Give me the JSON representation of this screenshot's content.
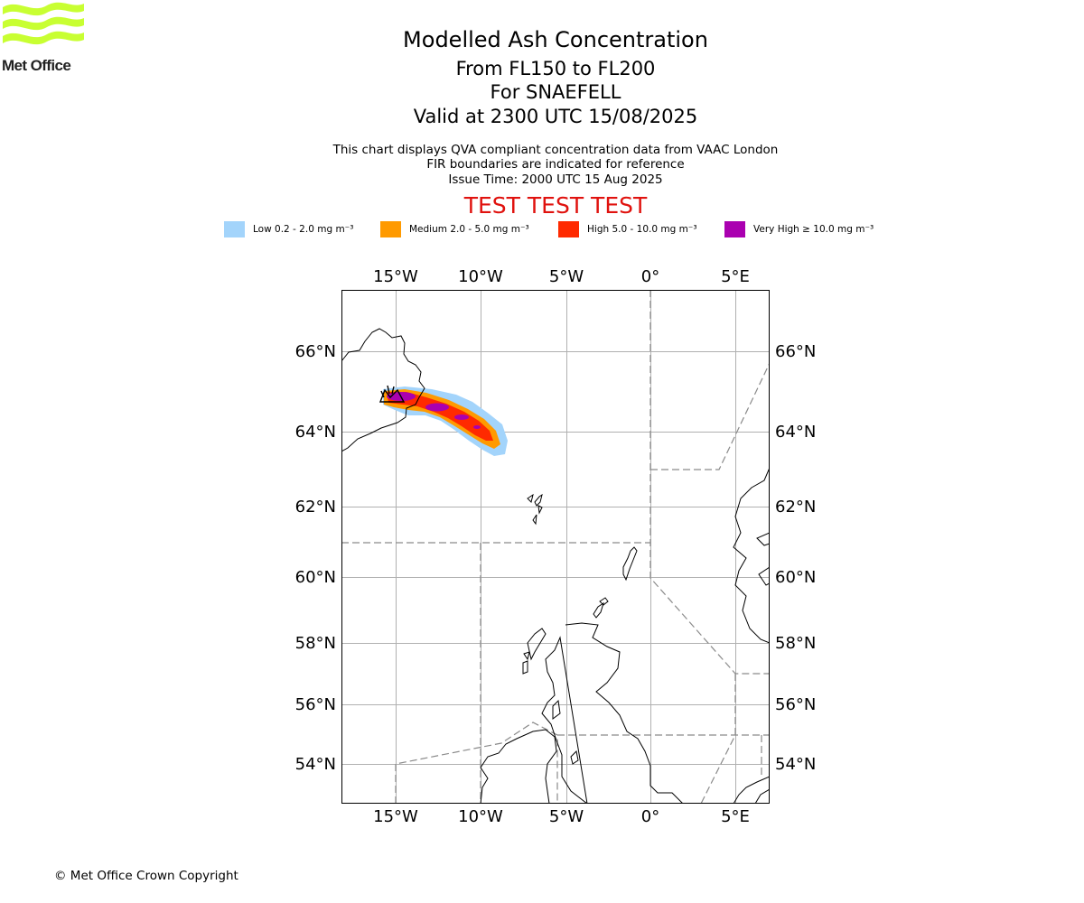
{
  "header": {
    "logo_text": "Met Office",
    "title": "Modelled Ash Concentration",
    "flight_levels": "From FL150 to FL200",
    "volcano": "For SNAEFELL",
    "valid": "Valid at 2300 UTC 15/08/2025"
  },
  "notes": {
    "line1": "This chart displays QVA compliant concentration data from VAAC London",
    "line2": "FIR boundaries are indicated for reference",
    "line3": "Issue Time: 2000 UTC 15 Aug 2025"
  },
  "test_banner": "TEST TEST TEST",
  "legend": [
    {
      "label": "Low 0.2 - 2.0 mg m⁻³",
      "color": "#a3d4fb"
    },
    {
      "label": "Medium 2.0 - 5.0 mg m⁻³",
      "color": "#ff9a00"
    },
    {
      "label": "High 5.0 - 10.0 mg m⁻³",
      "color": "#ff2a00"
    },
    {
      "label": "Very High ≥ 10.0 mg m⁻³",
      "color": "#aa00b0"
    }
  ],
  "map": {
    "lon_ticks": [
      "15°W",
      "10°W",
      "5°W",
      "0°",
      "5°E"
    ],
    "lat_ticks": [
      "66°N",
      "64°N",
      "62°N",
      "60°N",
      "58°N",
      "56°N",
      "54°N"
    ],
    "gridlines": true,
    "colors": {
      "grid": "#b0b0b0",
      "coast": "#000000",
      "fir": "#8a8a8a"
    }
  },
  "footer": {
    "copyright": "© Met Office Crown Copyright"
  }
}
